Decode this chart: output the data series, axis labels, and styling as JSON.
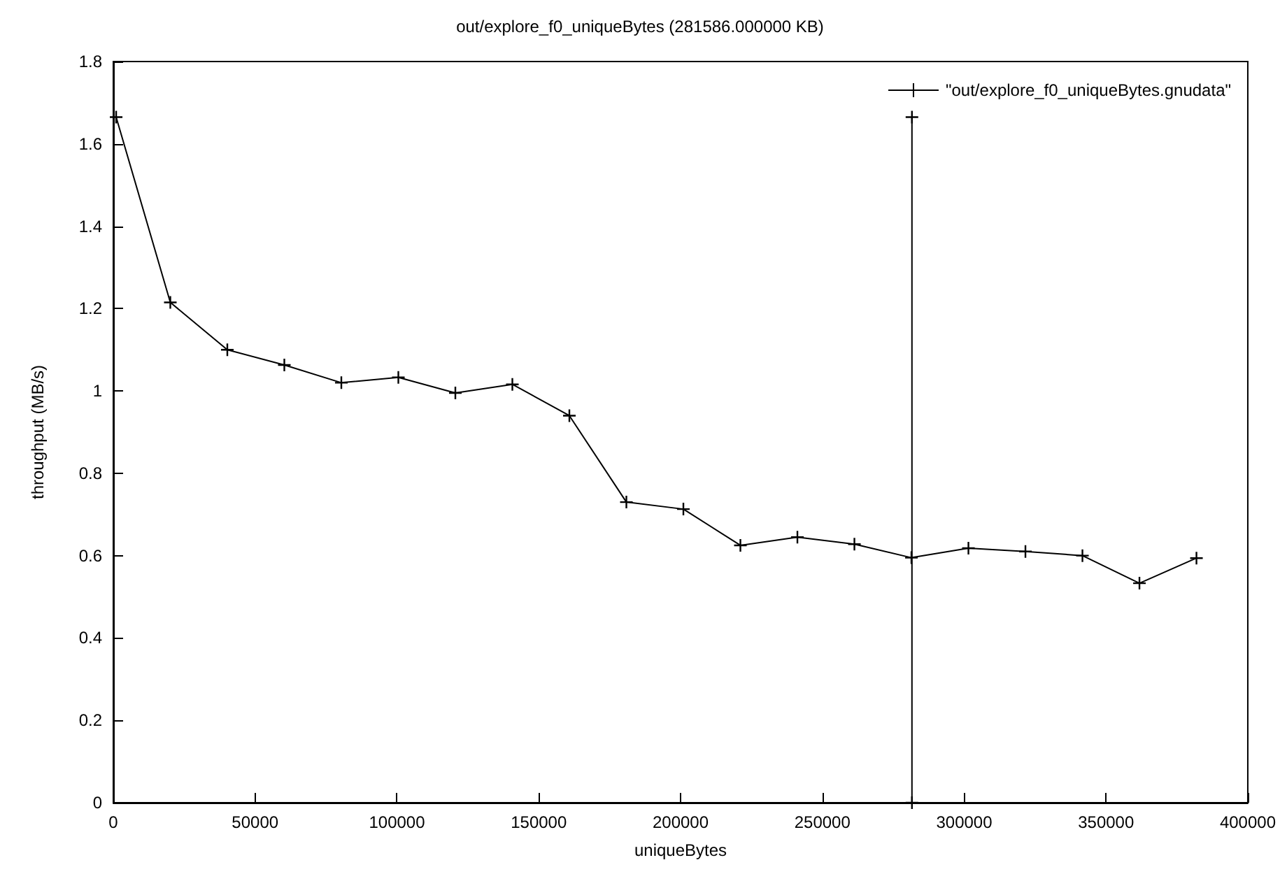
{
  "chart_data": {
    "type": "line",
    "title": "out/explore_f0_uniqueBytes (281586.000000 KB)",
    "xlabel": "uniqueBytes",
    "ylabel": "throughput (MB/s)",
    "series": [
      {
        "name": "\"out/explore_f0_uniqueBytes.gnudata\"",
        "color": "#000000",
        "x": [
          1000,
          20100,
          40200,
          60300,
          80400,
          100500,
          120600,
          140700,
          160800,
          180900,
          201000,
          221100,
          241200,
          261300,
          281400,
          301500,
          321600,
          341700,
          361800,
          381900
        ],
        "values": [
          1.665,
          1.215,
          1.1,
          1.063,
          1.02,
          1.033,
          0.995,
          1.016,
          0.94,
          0.73,
          0.713,
          0.625,
          0.645,
          0.628,
          0.595,
          0.618,
          0.61,
          0.6,
          0.533,
          0.594
        ]
      },
      {
        "color": "#000000",
        "x": [
          281586,
          281586
        ],
        "values": [
          0,
          1.665
        ]
      }
    ],
    "xlim": [
      0,
      400000
    ],
    "xticks": [
      0,
      50000,
      100000,
      150000,
      200000,
      250000,
      300000,
      350000,
      400000
    ],
    "ylim": [
      0,
      1.8
    ],
    "yticks": [
      0,
      0.2,
      0.4,
      0.6,
      0.8,
      1,
      1.2,
      1.4,
      1.6,
      1.8
    ],
    "marker": "cross",
    "legend": "top right",
    "grid": false
  }
}
